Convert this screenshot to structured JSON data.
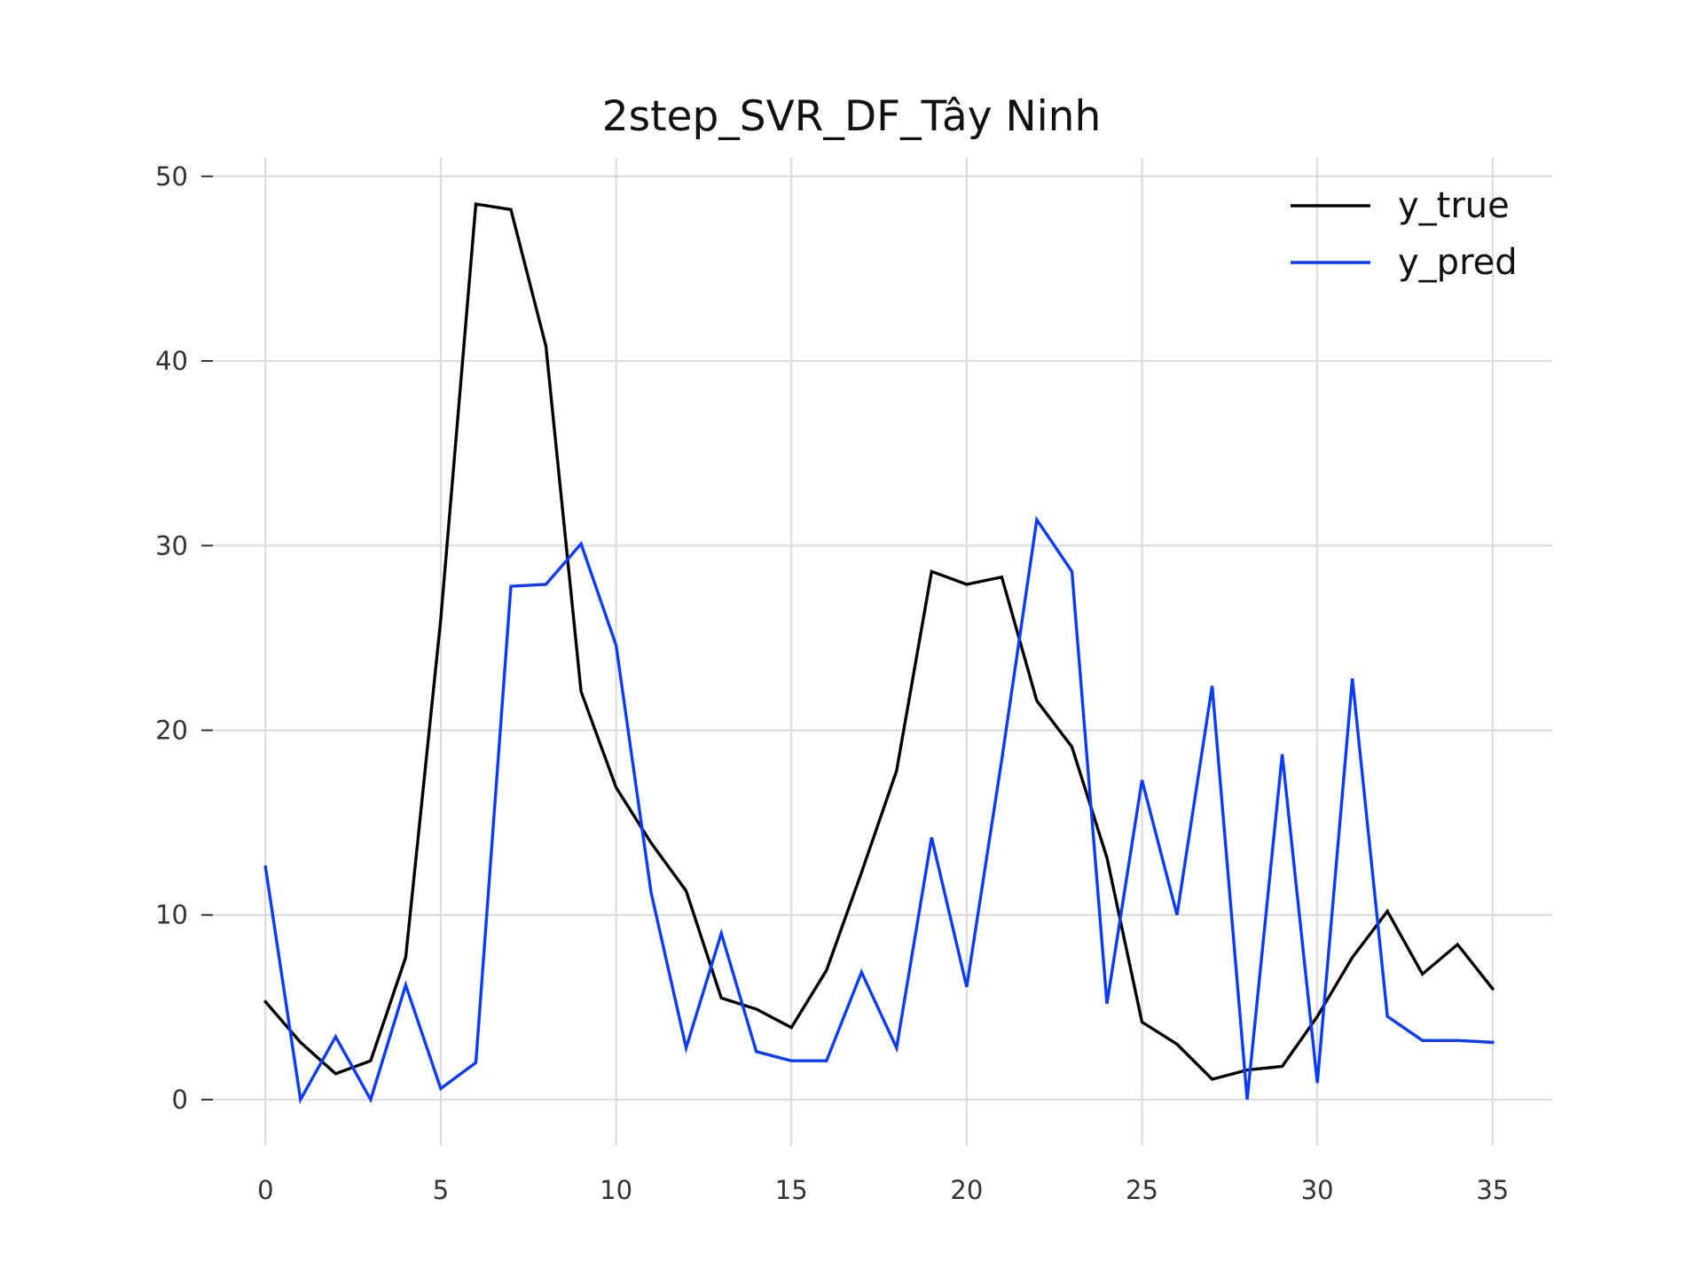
{
  "chart_data": {
    "type": "line",
    "title": "2step_SVR_DF_Tây Ninh",
    "xlabel": "",
    "ylabel": "",
    "xlim": [
      -1.5,
      36.7
    ],
    "ylim": [
      -2.5,
      51
    ],
    "x_ticks": [
      0,
      5,
      10,
      15,
      20,
      25,
      30,
      35
    ],
    "y_ticks": [
      0,
      10,
      20,
      30,
      40,
      50
    ],
    "grid": true,
    "legend_position": "top-right",
    "x": [
      0,
      1,
      2,
      3,
      4,
      5,
      6,
      7,
      8,
      9,
      10,
      11,
      12,
      13,
      14,
      15,
      16,
      17,
      18,
      19,
      20,
      21,
      22,
      23,
      24,
      25,
      26,
      27,
      28,
      29,
      30,
      31,
      32,
      33,
      34,
      35
    ],
    "series": [
      {
        "name": "y_true",
        "color": "#000000",
        "values": [
          5.3,
          3.1,
          1.4,
          2.1,
          7.7,
          26.0,
          48.5,
          48.2,
          40.8,
          22.1,
          16.9,
          13.9,
          11.3,
          5.5,
          4.9,
          3.9,
          7.0,
          12.3,
          17.8,
          28.6,
          27.9,
          28.3,
          21.6,
          19.1,
          13.1,
          4.2,
          3.0,
          1.1,
          1.6,
          1.8,
          4.5,
          7.7,
          10.2,
          6.8,
          8.4,
          6.0
        ]
      },
      {
        "name": "y_pred",
        "color": "#0a3cff",
        "values": [
          12.6,
          0.0,
          3.4,
          0.0,
          6.2,
          0.6,
          2.0,
          27.8,
          27.9,
          30.1,
          24.6,
          11.2,
          2.8,
          9.0,
          2.6,
          2.1,
          2.1,
          6.9,
          2.8,
          14.2,
          6.1,
          18.4,
          31.4,
          28.6,
          5.2,
          17.3,
          10.0,
          22.4,
          0.0,
          18.7,
          0.9,
          22.8,
          4.5,
          3.2,
          3.2,
          3.1
        ]
      }
    ]
  }
}
